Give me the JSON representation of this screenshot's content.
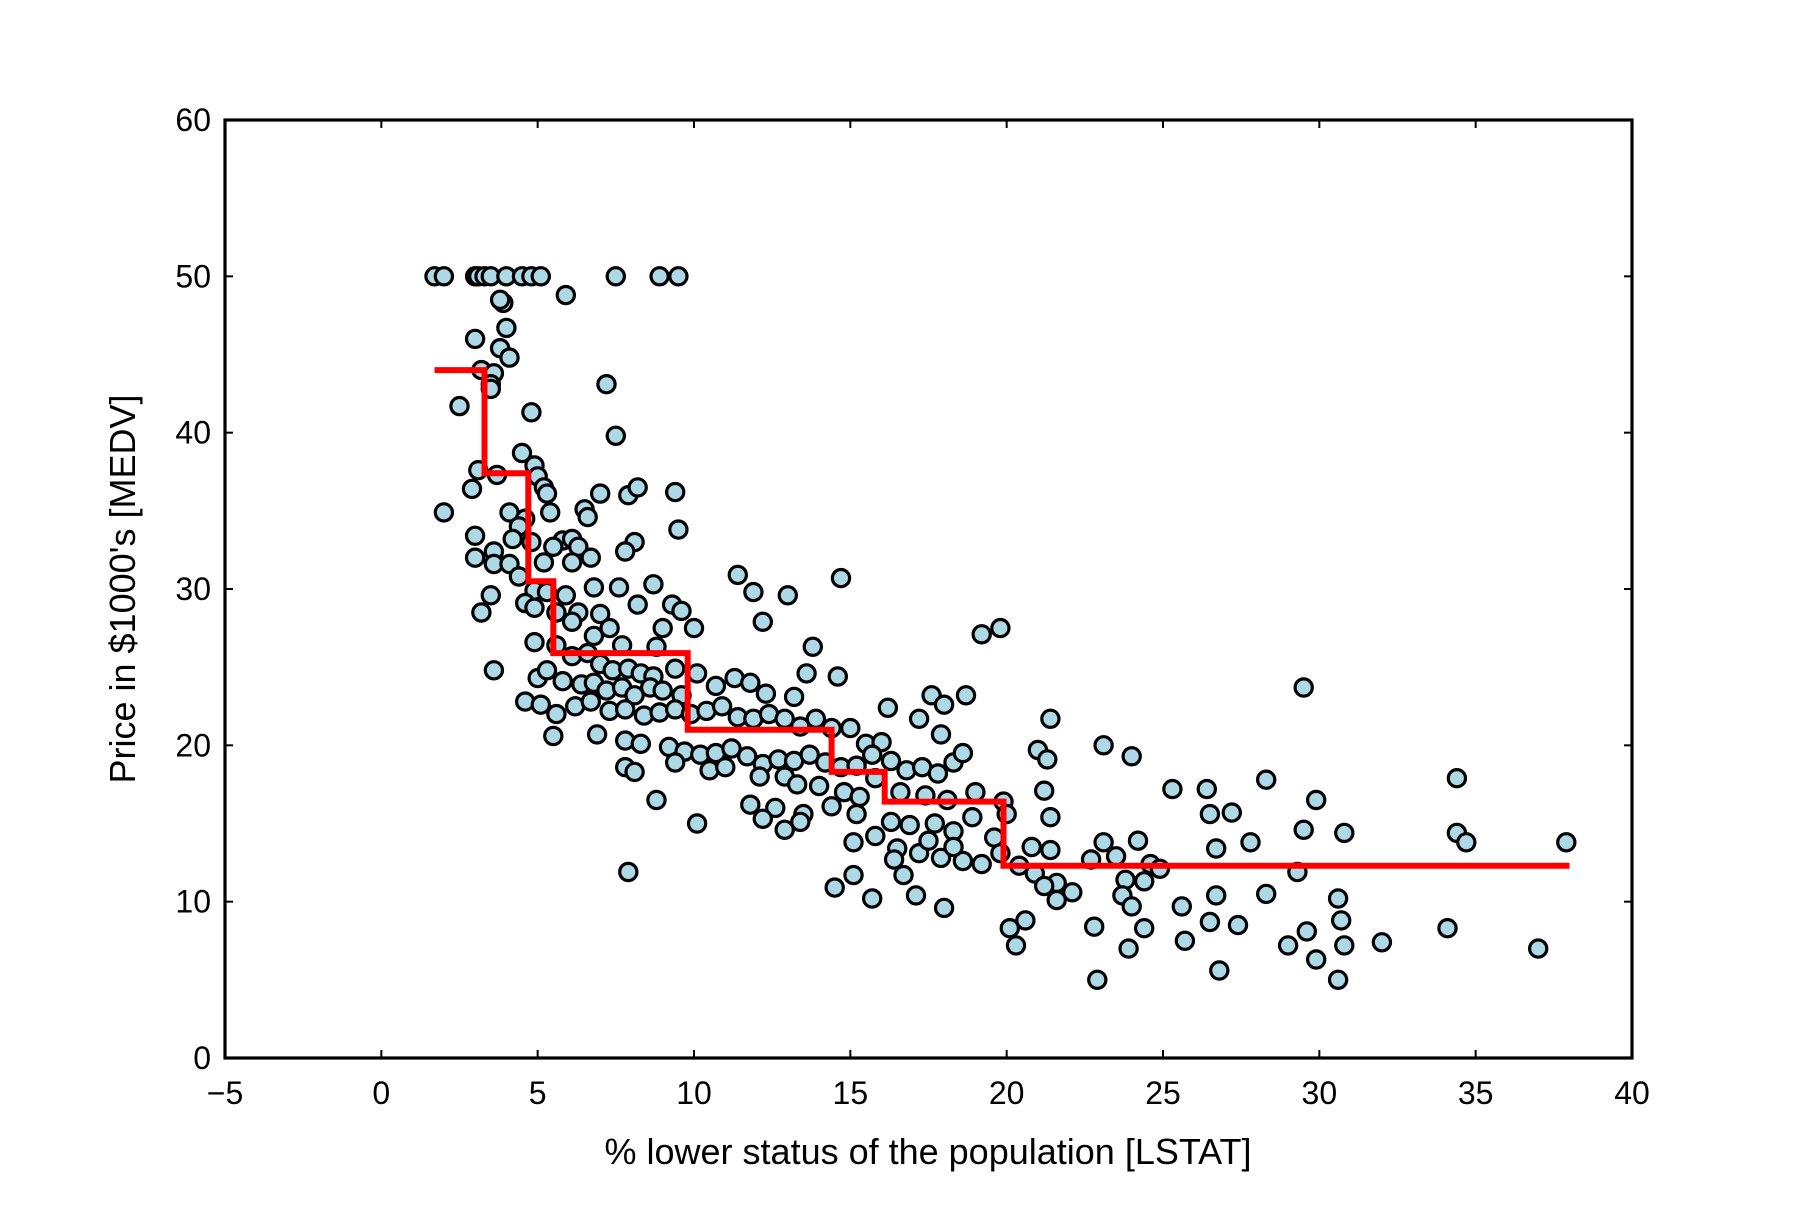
{
  "chart_data": {
    "type": "scatter",
    "title": "",
    "xlabel": "% lower status of the population [LSTAT]",
    "ylabel": "Price in $1000's [MEDV]",
    "xlim": [
      -5,
      40
    ],
    "ylim": [
      0,
      60
    ],
    "xticks": [
      -5,
      0,
      5,
      10,
      15,
      20,
      25,
      30,
      35,
      40
    ],
    "xtick_labels": [
      "−5",
      "0",
      "5",
      "10",
      "15",
      "20",
      "25",
      "30",
      "35",
      "40"
    ],
    "yticks": [
      0,
      10,
      20,
      30,
      40,
      50,
      60
    ],
    "ytick_labels": [
      "0",
      "10",
      "20",
      "30",
      "40",
      "50",
      "60"
    ],
    "grid": false,
    "colors": {
      "points": "#add8e6",
      "point_edge": "#000000",
      "step_line": "#ff0000"
    },
    "series": [
      {
        "type": "scatter",
        "points": [
          [
            1.7,
            50
          ],
          [
            2.0,
            50
          ],
          [
            3.0,
            50
          ],
          [
            3.1,
            50
          ],
          [
            3.3,
            50
          ],
          [
            3.5,
            50
          ],
          [
            4.0,
            50
          ],
          [
            4.5,
            50
          ],
          [
            4.8,
            50
          ],
          [
            5.1,
            50
          ],
          [
            7.5,
            50
          ],
          [
            8.9,
            50
          ],
          [
            9.5,
            50
          ],
          [
            5.9,
            48.8
          ],
          [
            3.9,
            48.3
          ],
          [
            3.8,
            48.5
          ],
          [
            4.0,
            46.7
          ],
          [
            3.0,
            46.0
          ],
          [
            3.8,
            45.4
          ],
          [
            4.1,
            44.8
          ],
          [
            3.2,
            44.0
          ],
          [
            3.6,
            43.8
          ],
          [
            3.5,
            43.1
          ],
          [
            7.2,
            43.1
          ],
          [
            3.5,
            42.8
          ],
          [
            2.5,
            41.7
          ],
          [
            4.8,
            41.3
          ],
          [
            7.5,
            39.8
          ],
          [
            4.5,
            38.7
          ],
          [
            3.1,
            37.6
          ],
          [
            3.7,
            37.3
          ],
          [
            4.9,
            37.9
          ],
          [
            5.0,
            37.2
          ],
          [
            5.2,
            36.5
          ],
          [
            2.9,
            36.4
          ],
          [
            5.3,
            36.1
          ],
          [
            7.0,
            36.1
          ],
          [
            7.9,
            36.0
          ],
          [
            8.2,
            36.5
          ],
          [
            9.4,
            36.2
          ],
          [
            2.0,
            34.9
          ],
          [
            4.1,
            34.9
          ],
          [
            5.4,
            34.9
          ],
          [
            6.5,
            35.1
          ],
          [
            6.6,
            34.6
          ],
          [
            4.6,
            34.5
          ],
          [
            4.4,
            34.0
          ],
          [
            9.5,
            33.8
          ],
          [
            3.0,
            33.4
          ],
          [
            4.2,
            33.2
          ],
          [
            5.8,
            33.1
          ],
          [
            6.1,
            33.2
          ],
          [
            8.1,
            33.0
          ],
          [
            4.8,
            33.0
          ],
          [
            5.5,
            32.7
          ],
          [
            3.6,
            32.4
          ],
          [
            6.3,
            32.7
          ],
          [
            3.0,
            32.0
          ],
          [
            6.7,
            32.0
          ],
          [
            3.6,
            31.6
          ],
          [
            4.1,
            31.6
          ],
          [
            5.2,
            31.7
          ],
          [
            7.8,
            32.4
          ],
          [
            4.4,
            30.8
          ],
          [
            6.1,
            31.7
          ],
          [
            4.9,
            29.9
          ],
          [
            6.8,
            30.1
          ],
          [
            5.3,
            29.8
          ],
          [
            7.6,
            30.1
          ],
          [
            8.7,
            30.3
          ],
          [
            11.4,
            30.9
          ],
          [
            11.9,
            29.8
          ],
          [
            13.0,
            29.6
          ],
          [
            14.7,
            30.7
          ],
          [
            3.5,
            29.6
          ],
          [
            4.6,
            29.1
          ],
          [
            5.9,
            29.6
          ],
          [
            6.3,
            28.5
          ],
          [
            7.0,
            28.4
          ],
          [
            8.2,
            29.0
          ],
          [
            9.3,
            29.0
          ],
          [
            9.6,
            28.6
          ],
          [
            3.2,
            28.5
          ],
          [
            4.9,
            28.8
          ],
          [
            5.6,
            28.5
          ],
          [
            7.3,
            27.5
          ],
          [
            9.0,
            27.5
          ],
          [
            10.0,
            27.5
          ],
          [
            12.2,
            27.9
          ],
          [
            6.1,
            27.9
          ],
          [
            6.8,
            27.0
          ],
          [
            7.7,
            26.4
          ],
          [
            4.9,
            26.6
          ],
          [
            8.8,
            26.3
          ],
          [
            13.8,
            26.3
          ],
          [
            19.2,
            27.1
          ],
          [
            19.8,
            27.5
          ],
          [
            3.6,
            24.8
          ],
          [
            5.6,
            26.4
          ],
          [
            6.1,
            25.7
          ],
          [
            6.6,
            25.9
          ],
          [
            7.0,
            25.2
          ],
          [
            7.4,
            24.8
          ],
          [
            7.9,
            24.9
          ],
          [
            8.3,
            24.6
          ],
          [
            8.7,
            24.4
          ],
          [
            9.4,
            24.9
          ],
          [
            5.0,
            24.3
          ],
          [
            5.3,
            24.8
          ],
          [
            5.8,
            24.1
          ],
          [
            6.4,
            23.9
          ],
          [
            6.8,
            24.0
          ],
          [
            7.2,
            23.5
          ],
          [
            7.7,
            23.7
          ],
          [
            8.1,
            23.2
          ],
          [
            8.6,
            23.7
          ],
          [
            9.0,
            23.5
          ],
          [
            9.6,
            23.2
          ],
          [
            10.1,
            24.6
          ],
          [
            10.7,
            23.8
          ],
          [
            11.3,
            24.3
          ],
          [
            11.8,
            24.0
          ],
          [
            12.3,
            23.3
          ],
          [
            13.2,
            23.1
          ],
          [
            13.6,
            24.6
          ],
          [
            14.6,
            24.4
          ],
          [
            16.2,
            22.4
          ],
          [
            17.6,
            23.2
          ],
          [
            18.0,
            22.6
          ],
          [
            18.7,
            23.2
          ],
          [
            4.6,
            22.8
          ],
          [
            5.1,
            22.6
          ],
          [
            5.6,
            22.0
          ],
          [
            6.2,
            22.5
          ],
          [
            6.7,
            22.8
          ],
          [
            7.3,
            22.2
          ],
          [
            7.8,
            22.3
          ],
          [
            8.4,
            21.9
          ],
          [
            8.9,
            22.1
          ],
          [
            9.4,
            22.3
          ],
          [
            9.9,
            22.0
          ],
          [
            10.4,
            22.2
          ],
          [
            10.9,
            22.5
          ],
          [
            11.4,
            21.8
          ],
          [
            11.9,
            21.7
          ],
          [
            12.4,
            22.0
          ],
          [
            12.9,
            21.7
          ],
          [
            13.4,
            21.2
          ],
          [
            13.9,
            21.7
          ],
          [
            14.4,
            21.1
          ],
          [
            15.0,
            21.1
          ],
          [
            15.5,
            20.1
          ],
          [
            16.0,
            20.2
          ],
          [
            17.2,
            21.7
          ],
          [
            17.9,
            20.7
          ],
          [
            5.5,
            20.6
          ],
          [
            6.9,
            20.7
          ],
          [
            7.8,
            20.3
          ],
          [
            8.3,
            20.1
          ],
          [
            9.2,
            19.9
          ],
          [
            9.7,
            19.6
          ],
          [
            10.2,
            19.4
          ],
          [
            10.7,
            19.5
          ],
          [
            11.2,
            19.8
          ],
          [
            11.7,
            19.3
          ],
          [
            12.2,
            18.8
          ],
          [
            12.7,
            19.1
          ],
          [
            13.2,
            19.0
          ],
          [
            13.7,
            19.4
          ],
          [
            14.2,
            18.9
          ],
          [
            14.7,
            18.6
          ],
          [
            15.2,
            18.7
          ],
          [
            15.7,
            19.4
          ],
          [
            16.3,
            19.0
          ],
          [
            16.8,
            18.4
          ],
          [
            17.3,
            18.6
          ],
          [
            17.8,
            18.2
          ],
          [
            18.3,
            18.9
          ],
          [
            18.6,
            19.5
          ],
          [
            7.8,
            18.6
          ],
          [
            8.1,
            18.3
          ],
          [
            9.4,
            18.9
          ],
          [
            10.5,
            18.4
          ],
          [
            11.0,
            18.6
          ],
          [
            12.1,
            18.0
          ],
          [
            12.9,
            18.0
          ],
          [
            13.3,
            17.5
          ],
          [
            14.0,
            17.4
          ],
          [
            14.8,
            17.0
          ],
          [
            15.3,
            16.7
          ],
          [
            15.8,
            17.9
          ],
          [
            16.6,
            17.0
          ],
          [
            17.4,
            16.8
          ],
          [
            18.1,
            16.5
          ],
          [
            19.0,
            17.0
          ],
          [
            19.9,
            16.4
          ],
          [
            11.8,
            16.2
          ],
          [
            12.6,
            16.0
          ],
          [
            13.5,
            15.6
          ],
          [
            14.4,
            16.1
          ],
          [
            15.2,
            15.6
          ],
          [
            16.3,
            15.1
          ],
          [
            16.9,
            14.9
          ],
          [
            17.7,
            15.0
          ],
          [
            18.3,
            14.5
          ],
          [
            18.9,
            15.4
          ],
          [
            20.0,
            15.6
          ],
          [
            21.2,
            17.1
          ],
          [
            21.4,
            15.4
          ],
          [
            21.4,
            21.7
          ],
          [
            21.0,
            19.7
          ],
          [
            21.3,
            19.1
          ],
          [
            8.8,
            16.5
          ],
          [
            10.1,
            15.0
          ],
          [
            12.2,
            15.3
          ],
          [
            12.9,
            14.6
          ],
          [
            13.4,
            15.1
          ],
          [
            15.1,
            13.8
          ],
          [
            15.8,
            14.2
          ],
          [
            16.5,
            13.4
          ],
          [
            17.2,
            13.1
          ],
          [
            17.9,
            12.8
          ],
          [
            18.6,
            12.6
          ],
          [
            19.2,
            12.4
          ],
          [
            19.6,
            14.1
          ],
          [
            16.4,
            12.7
          ],
          [
            17.5,
            13.9
          ],
          [
            18.3,
            13.5
          ],
          [
            19.8,
            13.1
          ],
          [
            20.8,
            13.5
          ],
          [
            21.4,
            13.3
          ],
          [
            20.4,
            12.3
          ],
          [
            20.9,
            11.8
          ],
          [
            21.6,
            11.2
          ],
          [
            22.1,
            10.6
          ],
          [
            21.6,
            10.1
          ],
          [
            21.2,
            11.0
          ],
          [
            20.6,
            8.8
          ],
          [
            20.1,
            8.3
          ],
          [
            20.3,
            7.2
          ],
          [
            14.5,
            10.9
          ],
          [
            15.1,
            11.7
          ],
          [
            15.7,
            10.2
          ],
          [
            16.7,
            11.7
          ],
          [
            17.1,
            10.4
          ],
          [
            18.0,
            9.6
          ],
          [
            7.9,
            11.9
          ],
          [
            22.7,
            12.7
          ],
          [
            23.1,
            13.8
          ],
          [
            23.5,
            12.9
          ],
          [
            24.2,
            13.9
          ],
          [
            24.6,
            12.4
          ],
          [
            23.8,
            11.4
          ],
          [
            24.4,
            11.3
          ],
          [
            23.7,
            10.4
          ],
          [
            24.0,
            9.7
          ],
          [
            24.4,
            8.3
          ],
          [
            22.8,
            8.4
          ],
          [
            23.9,
            7.0
          ],
          [
            22.9,
            5.0
          ],
          [
            23.1,
            20.0
          ],
          [
            24.0,
            19.3
          ],
          [
            25.3,
            17.2
          ],
          [
            26.4,
            17.2
          ],
          [
            26.5,
            15.6
          ],
          [
            27.2,
            15.7
          ],
          [
            27.8,
            13.8
          ],
          [
            26.7,
            13.4
          ],
          [
            28.3,
            17.8
          ],
          [
            29.5,
            23.7
          ],
          [
            29.9,
            16.5
          ],
          [
            29.5,
            14.6
          ],
          [
            30.8,
            14.4
          ],
          [
            29.3,
            11.9
          ],
          [
            30.6,
            10.2
          ],
          [
            25.6,
            9.7
          ],
          [
            26.7,
            10.4
          ],
          [
            26.5,
            8.7
          ],
          [
            27.4,
            8.5
          ],
          [
            28.3,
            10.5
          ],
          [
            25.7,
            7.5
          ],
          [
            26.8,
            5.6
          ],
          [
            29.0,
            7.2
          ],
          [
            29.6,
            8.1
          ],
          [
            29.9,
            6.3
          ],
          [
            30.7,
            8.8
          ],
          [
            30.8,
            7.2
          ],
          [
            30.6,
            5.0
          ],
          [
            32.0,
            7.4
          ],
          [
            34.1,
            8.3
          ],
          [
            34.4,
            17.9
          ],
          [
            34.4,
            14.4
          ],
          [
            34.7,
            13.8
          ],
          [
            37.0,
            7.0
          ],
          [
            37.9,
            13.8
          ],
          [
            24.9,
            12.1
          ]
        ]
      },
      {
        "type": "step",
        "points": [
          [
            1.7,
            44.0
          ],
          [
            3.3,
            44.0
          ],
          [
            3.3,
            37.4
          ],
          [
            4.7,
            37.4
          ],
          [
            4.7,
            30.5
          ],
          [
            5.5,
            30.5
          ],
          [
            5.5,
            25.9
          ],
          [
            9.8,
            25.9
          ],
          [
            9.8,
            21.0
          ],
          [
            14.4,
            21.0
          ],
          [
            14.4,
            18.3
          ],
          [
            16.1,
            18.3
          ],
          [
            16.1,
            16.4
          ],
          [
            19.9,
            16.4
          ],
          [
            19.9,
            12.3
          ],
          [
            38.0,
            12.3
          ]
        ]
      }
    ]
  }
}
